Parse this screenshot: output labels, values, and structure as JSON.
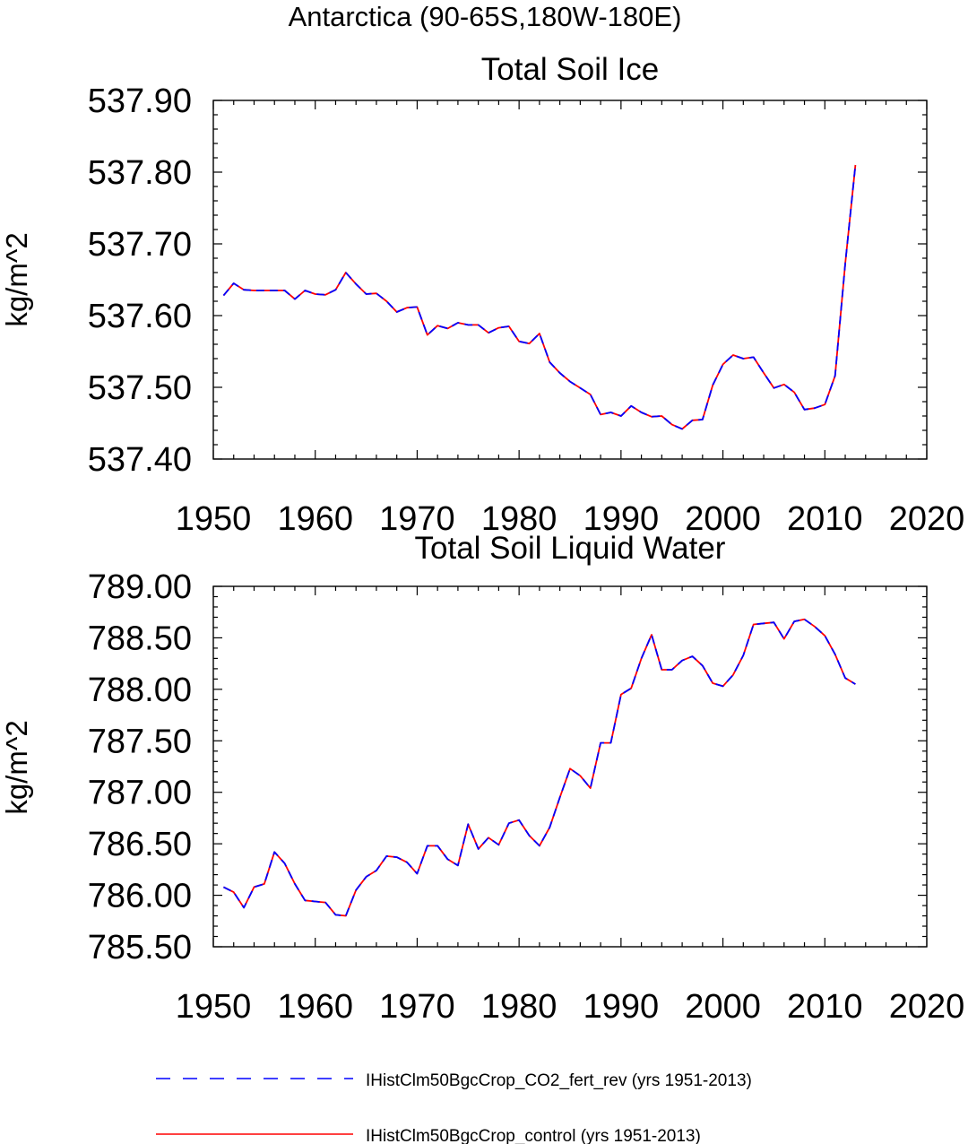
{
  "figure": {
    "main_title": "Antarctica (90-65S,180W-180E)"
  },
  "chart_data": [
    {
      "type": "line",
      "title": "Total Soil Ice",
      "xlabel": "",
      "ylabel": "kg/m^2",
      "xlim": [
        1950,
        2020
      ],
      "ylim": [
        537.4,
        537.9
      ],
      "xticks": [
        "1950",
        "1960",
        "1970",
        "1980",
        "1990",
        "2000",
        "2010",
        "2020"
      ],
      "yticks": [
        "537.40",
        "537.50",
        "537.60",
        "537.70",
        "537.80",
        "537.90"
      ],
      "grid": false,
      "x": [
        1951,
        1952,
        1953,
        1954,
        1955,
        1956,
        1957,
        1958,
        1959,
        1960,
        1961,
        1962,
        1963,
        1964,
        1965,
        1966,
        1967,
        1968,
        1969,
        1970,
        1971,
        1972,
        1973,
        1974,
        1975,
        1976,
        1977,
        1978,
        1979,
        1980,
        1981,
        1982,
        1983,
        1984,
        1985,
        1986,
        1987,
        1988,
        1989,
        1990,
        1991,
        1992,
        1993,
        1994,
        1995,
        1996,
        1997,
        1998,
        1999,
        2000,
        2001,
        2002,
        2003,
        2004,
        2005,
        2006,
        2007,
        2008,
        2009,
        2010,
        2011,
        2012,
        2013
      ],
      "series": [
        {
          "name": "IHistClm50BgcCrop_control (yrs 1951-2013)",
          "color": "#ff0000",
          "style": "solid",
          "values": [
            537.628,
            537.645,
            537.636,
            537.635,
            537.635,
            537.635,
            537.635,
            537.623,
            537.635,
            537.63,
            537.629,
            537.636,
            537.66,
            537.644,
            537.63,
            537.631,
            537.62,
            537.605,
            537.611,
            537.612,
            537.573,
            537.586,
            537.582,
            537.59,
            537.587,
            537.587,
            537.576,
            537.583,
            537.585,
            537.564,
            537.561,
            537.575,
            537.535,
            537.52,
            537.508,
            537.499,
            537.49,
            537.462,
            537.465,
            537.46,
            537.474,
            537.465,
            537.459,
            537.46,
            537.448,
            537.442,
            537.454,
            537.455,
            537.503,
            537.532,
            537.545,
            537.54,
            537.542,
            537.52,
            537.499,
            537.504,
            537.493,
            537.469,
            537.471,
            537.476,
            537.516,
            537.672,
            537.81
          ]
        },
        {
          "name": "IHistClm50BgcCrop_CO2_fert_rev (yrs 1951-2013)",
          "color": "#0000ff",
          "style": "dashed",
          "values": [
            537.628,
            537.645,
            537.636,
            537.635,
            537.635,
            537.635,
            537.635,
            537.623,
            537.635,
            537.63,
            537.629,
            537.636,
            537.66,
            537.644,
            537.63,
            537.631,
            537.62,
            537.605,
            537.611,
            537.612,
            537.573,
            537.586,
            537.582,
            537.59,
            537.587,
            537.587,
            537.576,
            537.583,
            537.585,
            537.564,
            537.561,
            537.575,
            537.535,
            537.52,
            537.508,
            537.499,
            537.49,
            537.462,
            537.465,
            537.46,
            537.474,
            537.465,
            537.459,
            537.46,
            537.448,
            537.442,
            537.454,
            537.455,
            537.503,
            537.532,
            537.545,
            537.54,
            537.542,
            537.52,
            537.499,
            537.504,
            537.493,
            537.469,
            537.471,
            537.476,
            537.516,
            537.672,
            537.81
          ]
        }
      ]
    },
    {
      "type": "line",
      "title": "Total Soil Liquid Water",
      "xlabel": "",
      "ylabel": "kg/m^2",
      "xlim": [
        1950,
        2020
      ],
      "ylim": [
        785.5,
        789.0
      ],
      "xticks": [
        "1950",
        "1960",
        "1970",
        "1980",
        "1990",
        "2000",
        "2010",
        "2020"
      ],
      "yticks": [
        "785.50",
        "786.00",
        "786.50",
        "787.00",
        "787.50",
        "788.00",
        "788.50",
        "789.00"
      ],
      "grid": false,
      "x": [
        1951,
        1952,
        1953,
        1954,
        1955,
        1956,
        1957,
        1958,
        1959,
        1960,
        1961,
        1962,
        1963,
        1964,
        1965,
        1966,
        1967,
        1968,
        1969,
        1970,
        1971,
        1972,
        1973,
        1974,
        1975,
        1976,
        1977,
        1978,
        1979,
        1980,
        1981,
        1982,
        1983,
        1984,
        1985,
        1986,
        1987,
        1988,
        1989,
        1990,
        1991,
        1992,
        1993,
        1994,
        1995,
        1996,
        1997,
        1998,
        1999,
        2000,
        2001,
        2002,
        2003,
        2004,
        2005,
        2006,
        2007,
        2008,
        2009,
        2010,
        2011,
        2012,
        2013
      ],
      "series": [
        {
          "name": "IHistClm50BgcCrop_control (yrs 1951-2013)",
          "color": "#ff0000",
          "style": "solid",
          "values": [
            786.08,
            786.03,
            785.88,
            786.08,
            786.11,
            786.42,
            786.31,
            786.11,
            785.95,
            785.94,
            785.93,
            785.81,
            785.8,
            786.05,
            786.18,
            786.24,
            786.38,
            786.37,
            786.32,
            786.21,
            786.48,
            786.48,
            786.35,
            786.29,
            786.69,
            786.45,
            786.56,
            786.49,
            786.7,
            786.73,
            786.58,
            786.48,
            786.66,
            786.95,
            787.23,
            787.16,
            787.04,
            787.48,
            787.48,
            787.95,
            788.01,
            788.3,
            788.53,
            788.19,
            788.19,
            788.28,
            788.32,
            788.23,
            788.06,
            788.03,
            788.14,
            788.33,
            788.63,
            788.64,
            788.65,
            788.49,
            788.66,
            788.68,
            788.61,
            788.52,
            788.34,
            788.11,
            788.05
          ]
        },
        {
          "name": "IHistClm50BgcCrop_CO2_fert_rev (yrs 1951-2013)",
          "color": "#0000ff",
          "style": "dashed",
          "values": [
            786.08,
            786.03,
            785.88,
            786.08,
            786.11,
            786.42,
            786.31,
            786.11,
            785.95,
            785.94,
            785.93,
            785.81,
            785.8,
            786.05,
            786.18,
            786.24,
            786.38,
            786.37,
            786.32,
            786.21,
            786.48,
            786.48,
            786.35,
            786.29,
            786.69,
            786.45,
            786.56,
            786.49,
            786.7,
            786.73,
            786.58,
            786.48,
            786.66,
            786.95,
            787.23,
            787.16,
            787.04,
            787.48,
            787.48,
            787.95,
            788.01,
            788.3,
            788.53,
            788.19,
            788.19,
            788.28,
            788.32,
            788.23,
            788.06,
            788.03,
            788.14,
            788.33,
            788.63,
            788.64,
            788.65,
            788.49,
            788.66,
            788.68,
            788.61,
            788.52,
            788.34,
            788.11,
            788.05
          ]
        }
      ]
    }
  ],
  "legend": {
    "placement": "bottom-left",
    "items": [
      {
        "label": "IHistClm50BgcCrop_CO2_fert_rev (yrs 1951-2013)",
        "color": "#0000ff",
        "style": "dashed"
      },
      {
        "label": "IHistClm50BgcCrop_control (yrs 1951-2013)",
        "color": "#ff0000",
        "style": "solid"
      }
    ]
  }
}
